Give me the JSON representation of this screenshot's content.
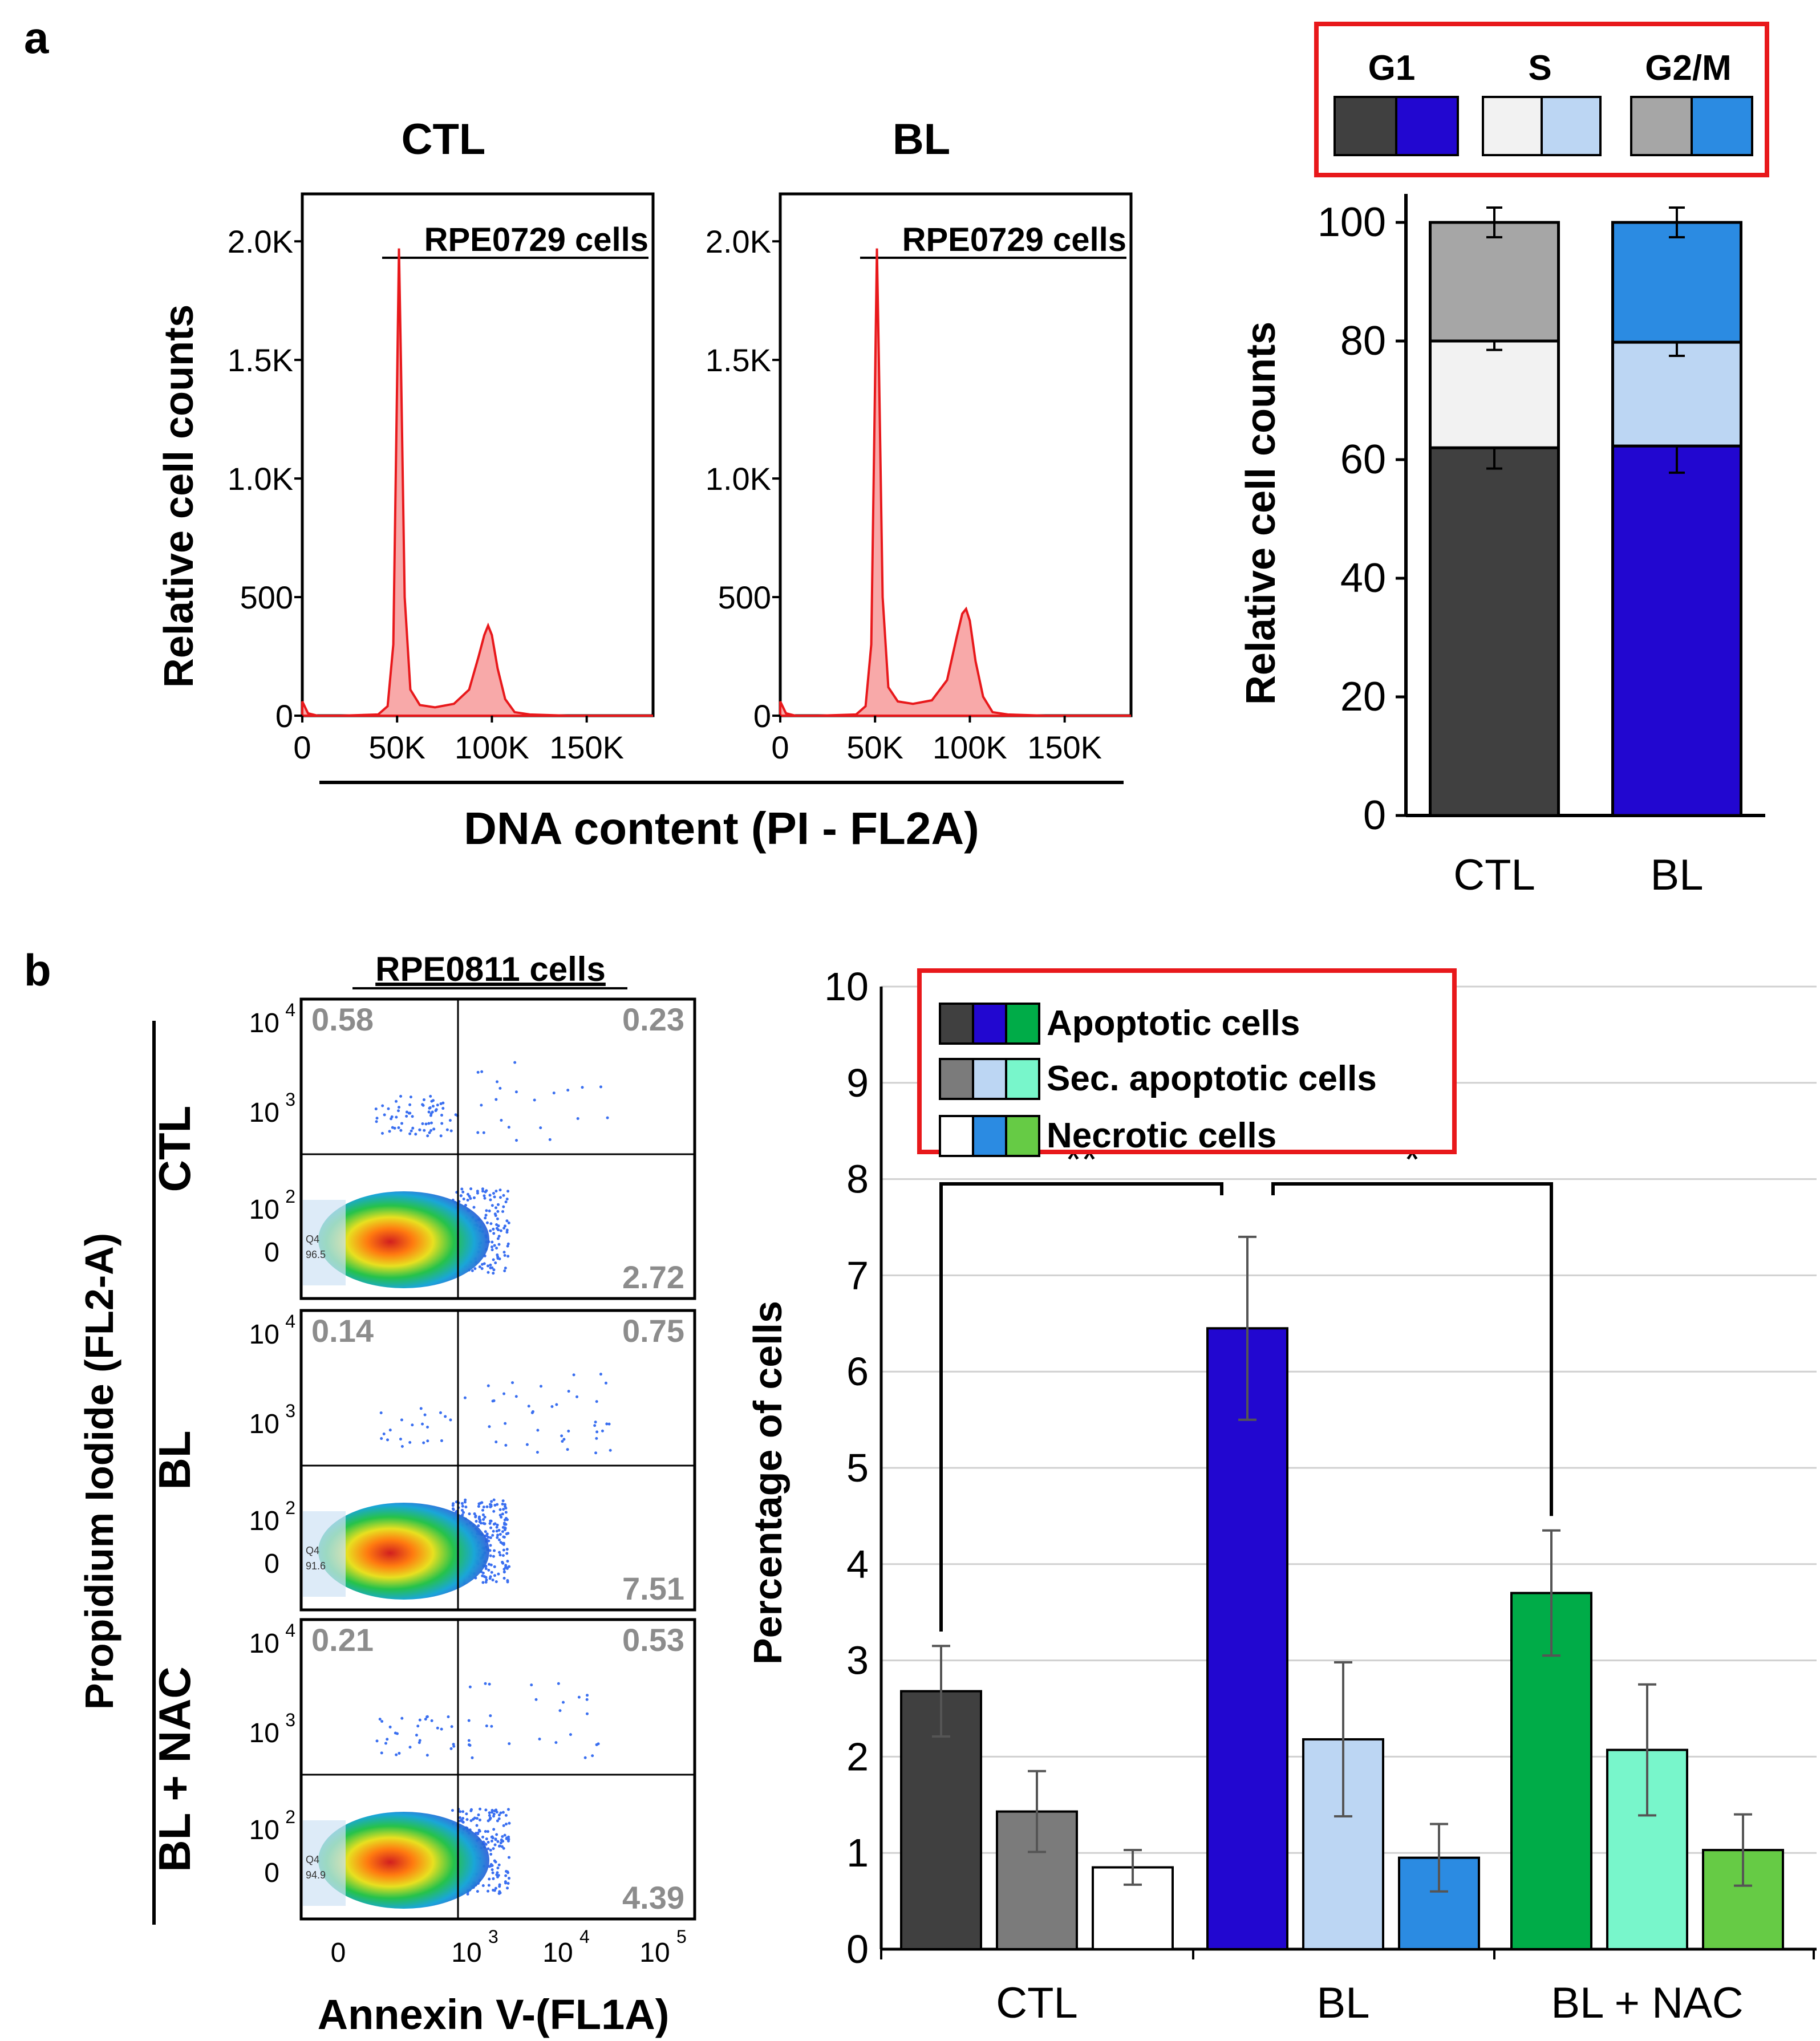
{
  "panel_labels": {
    "a": "a",
    "b": "b"
  },
  "colors": {
    "hist_fill": "#f8a9a9",
    "hist_line": "#e8181b",
    "legend_border": "#e8181b",
    "ctl_g1": "#404040",
    "ctl_s": "#f2f2f2",
    "ctl_g2m": "#a6a6a6",
    "bl_g1": "#2207d0",
    "bl_s": "#bcd6f3",
    "bl_g2m": "#2b8be2",
    "apop": [
      "#404040",
      "#2207d0",
      "#00ac48"
    ],
    "sec": [
      "#7b7b7b",
      "#bcd6f3",
      "#78f6cb"
    ],
    "necro": [
      "#ffffff",
      "#2b8be2",
      "#66cb45"
    ]
  },
  "panel_a": {
    "hist_titles": [
      "CTL",
      "BL"
    ],
    "hist_label": "RPE0729 cells",
    "ylabel": "Relative cell counts",
    "xlabel": "DNA content (PI - FL2A)",
    "y_ticks": [
      "0",
      "500",
      "1.0K",
      "1.5K",
      "2.0K"
    ],
    "x_ticks": [
      "0",
      "50K",
      "100K",
      "150K"
    ],
    "legend": {
      "g1": "G1",
      "s": "S",
      "g2m": "G2/M"
    }
  },
  "panel_b": {
    "flow_title": "RPE0811 cells",
    "ylabel": "Propidium Iodide (FL2-A)",
    "xlabel": "Annexin V-(FL1A)",
    "y_ticks": [
      {
        "b": "10",
        "e": "4"
      },
      {
        "b": "10",
        "e": "3"
      },
      {
        "b": "10",
        "e": "2"
      },
      {
        "b": "0",
        "e": ""
      }
    ],
    "x_ticks": [
      {
        "b": "0",
        "e": ""
      },
      {
        "b": "10",
        "e": "3"
      },
      {
        "b": "10",
        "e": "4"
      },
      {
        "b": "10",
        "e": "5"
      }
    ],
    "plots": [
      {
        "label": "CTL",
        "ul": "0.58",
        "ur": "0.23",
        "lr": "2.72",
        "q4": "Q4",
        "q4v": "96.5"
      },
      {
        "label": "BL",
        "ul": "0.14",
        "ur": "0.75",
        "lr": "7.51",
        "q4": "Q4",
        "q4v": "91.6"
      },
      {
        "label": "BL + NAC",
        "ul": "0.21",
        "ur": "0.53",
        "lr": "4.39",
        "q4": "Q4",
        "q4v": "94.9"
      }
    ],
    "legend": [
      "Apoptotic cells",
      "Sec. apoptotic cells",
      "Necrotic cells"
    ],
    "sig": [
      "**",
      "*"
    ]
  },
  "chart_data": [
    {
      "type": "area",
      "title": "CTL",
      "annotation": "RPE0729 cells",
      "xlabel": "DNA content (PI - FL2A)",
      "ylabel": "Relative cell counts",
      "xlim": [
        0,
        185000
      ],
      "ylim": [
        0,
        2200
      ],
      "x": [
        0,
        3000,
        8000,
        20000,
        40000,
        45000,
        48000,
        50000,
        51000,
        52000,
        54000,
        57000,
        62000,
        70000,
        80000,
        88000,
        93000,
        96000,
        98000,
        100000,
        103000,
        107000,
        112000,
        120000,
        140000,
        185000
      ],
      "y": [
        60,
        10,
        0,
        0,
        5,
        40,
        300,
        1400,
        1970,
        1500,
        500,
        110,
        45,
        35,
        50,
        110,
        250,
        340,
        380,
        340,
        200,
        70,
        15,
        5,
        0,
        0
      ]
    },
    {
      "type": "area",
      "title": "BL",
      "annotation": "RPE0729 cells",
      "xlabel": "DNA content (PI - FL2A)",
      "ylabel": "Relative cell counts",
      "xlim": [
        0,
        185000
      ],
      "ylim": [
        0,
        2200
      ],
      "x": [
        0,
        3000,
        8000,
        20000,
        40000,
        45000,
        48000,
        50000,
        51000,
        52000,
        54000,
        57000,
        62000,
        70000,
        80000,
        88000,
        93000,
        96000,
        98000,
        100000,
        103000,
        107000,
        112000,
        120000,
        140000,
        185000
      ],
      "y": [
        60,
        10,
        0,
        0,
        5,
        40,
        300,
        1400,
        1970,
        1500,
        500,
        120,
        60,
        50,
        65,
        150,
        330,
        430,
        450,
        400,
        230,
        80,
        15,
        5,
        0,
        0
      ]
    },
    {
      "type": "bar",
      "stacked": true,
      "ylabel": "Relative cell counts",
      "categories": [
        "CTL",
        "BL"
      ],
      "series": [
        {
          "name": "G1",
          "values": [
            62,
            62.3
          ],
          "errors": [
            3.5,
            4.5
          ]
        },
        {
          "name": "S",
          "values": [
            18,
            17.5
          ],
          "errors": [
            1.5,
            2.3
          ]
        },
        {
          "name": "G2/M",
          "values": [
            20,
            20.2
          ],
          "errors": [
            2.5,
            2.5
          ]
        }
      ],
      "ylim": [
        0,
        100
      ],
      "yticks": [
        0,
        20,
        40,
        60,
        80,
        100
      ]
    },
    {
      "type": "bar",
      "ylabel": "Percentage of cells",
      "categories": [
        "CTL",
        "BL",
        "BL + NAC"
      ],
      "series": [
        {
          "name": "Apoptotic cells",
          "values": [
            2.68,
            6.45,
            3.7
          ],
          "errors": [
            0.47,
            0.95,
            0.65
          ]
        },
        {
          "name": "Sec. apoptotic cells",
          "values": [
            1.43,
            2.18,
            2.07
          ],
          "errors": [
            0.42,
            0.8,
            0.68
          ]
        },
        {
          "name": "Necrotic cells",
          "values": [
            0.85,
            0.95,
            1.03
          ],
          "errors": [
            0.18,
            0.35,
            0.37
          ]
        }
      ],
      "ylim": [
        0,
        10
      ],
      "yticks": [
        0,
        1,
        2,
        3,
        4,
        5,
        6,
        7,
        8,
        9,
        10
      ],
      "grid": true,
      "legend_position": "top-left",
      "annotations": [
        {
          "between": [
            "CTL Apoptotic",
            "BL Apoptotic"
          ],
          "text": "**"
        },
        {
          "between": [
            "BL Apoptotic",
            "BL + NAC Apoptotic"
          ],
          "text": "*"
        }
      ]
    }
  ]
}
